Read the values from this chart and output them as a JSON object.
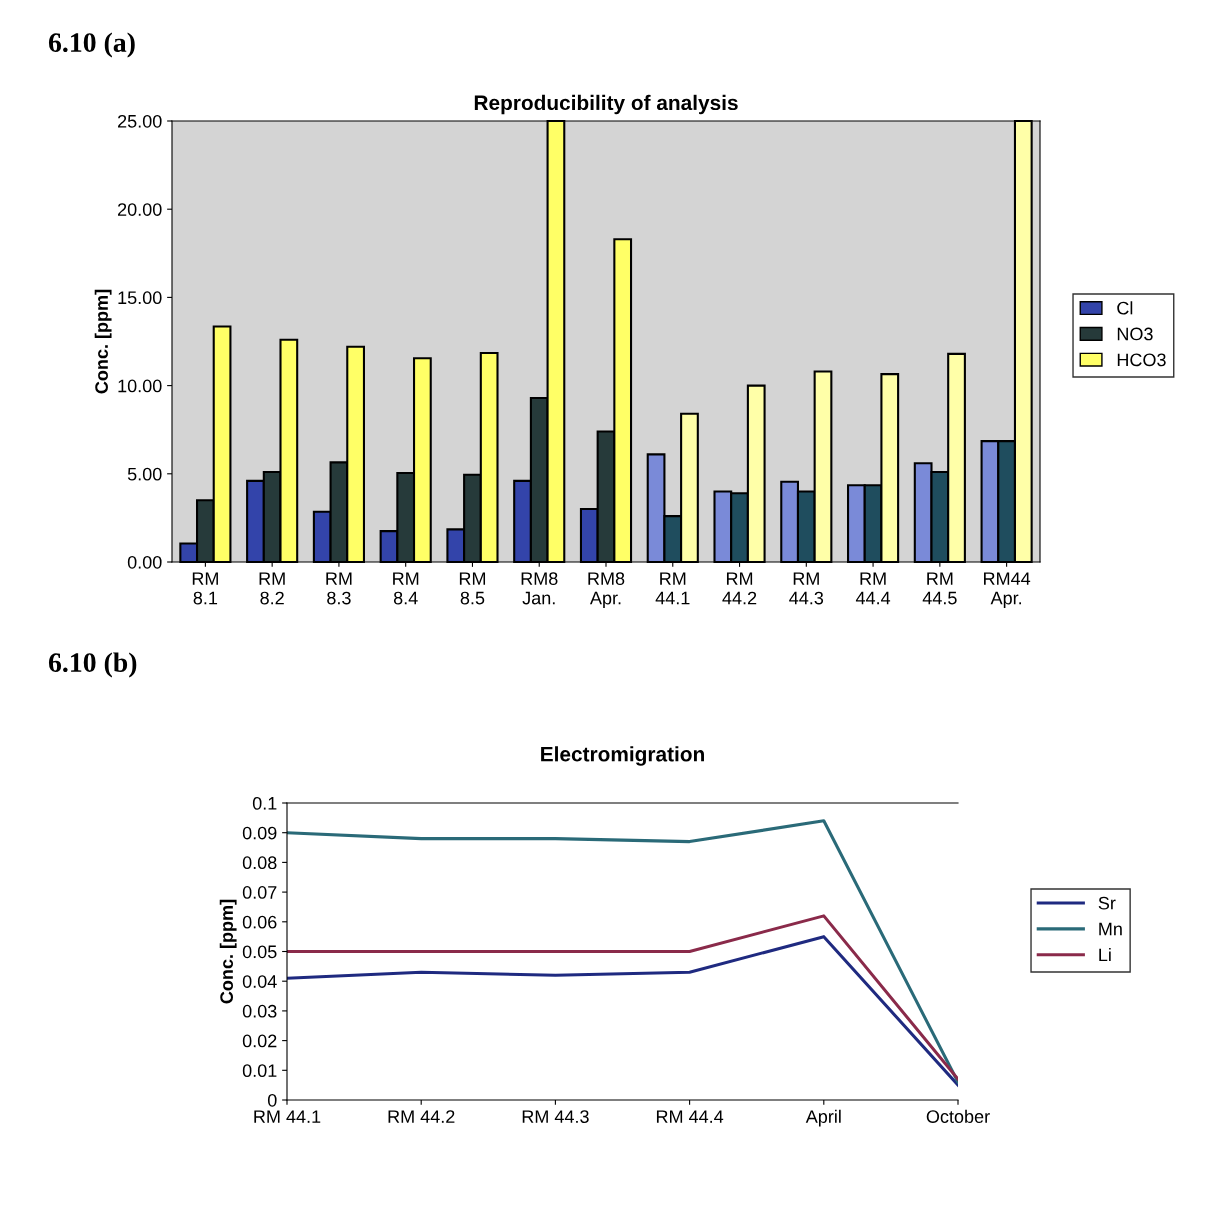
{
  "chart_data": [
    {
      "type": "bar",
      "title": "Reproducibility of analysis",
      "ylabel": "Conc. [ppm]",
      "annotations": [
        "6.10 (a)"
      ],
      "categories": [
        "RM\n8.1",
        "RM\n8.2",
        "RM\n8.3",
        "RM\n8.4",
        "RM\n8.5",
        "RM8\nJan.",
        "RM8\nApr.",
        "RM\n44.1",
        "RM\n44.2",
        "RM\n44.3",
        "RM\n44.4",
        "RM\n44.5",
        "RM44\nApr."
      ],
      "series": [
        {
          "name": "Cl",
          "color": "#3344aa",
          "colors": [
            "#3344aa",
            "#3344aa",
            "#3344aa",
            "#3344aa",
            "#3344aa",
            "#3344aa",
            "#3344aa",
            "#7a8ad8",
            "#7a8ad8",
            "#7a8ad8",
            "#7a8ad8",
            "#7a8ad8",
            "#7a8ad8"
          ],
          "values": [
            1.05,
            4.6,
            2.85,
            1.75,
            1.85,
            4.6,
            3.0,
            6.1,
            4.0,
            4.55,
            4.35,
            5.6,
            6.85
          ]
        },
        {
          "name": "NO3",
          "color": "#263a3a",
          "colors": [
            "#263a3a",
            "#263a3a",
            "#263a3a",
            "#263a3a",
            "#263a3a",
            "#263a3a",
            "#263a3a",
            "#1f4d5e",
            "#1f4d5e",
            "#1f4d5e",
            "#1f4d5e",
            "#1f4d5e",
            "#1f4d5e"
          ],
          "values": [
            3.5,
            5.1,
            5.65,
            5.05,
            4.95,
            9.3,
            7.4,
            2.6,
            3.9,
            4.0,
            4.35,
            5.1,
            6.85
          ]
        },
        {
          "name": "HCO3",
          "color": "#ffff66",
          "colors": [
            "#ffff66",
            "#ffff66",
            "#ffff66",
            "#ffff66",
            "#ffff66",
            "#ffff66",
            "#ffff66",
            "#ffffa8",
            "#ffffa8",
            "#ffffa8",
            "#ffffa8",
            "#ffffa8",
            "#ffffa8"
          ],
          "values": [
            13.35,
            12.6,
            12.2,
            11.55,
            11.85,
            25,
            18.3,
            8.4,
            10.0,
            10.8,
            10.65,
            11.8,
            25
          ]
        }
      ],
      "ylim": [
        0,
        25
      ],
      "yticks": [
        {
          "value": 0,
          "label": "0.00"
        },
        {
          "value": 5,
          "label": "5.00"
        },
        {
          "value": 10,
          "label": "10.00"
        },
        {
          "value": 15,
          "label": "15.00"
        },
        {
          "value": 20,
          "label": "20.00"
        },
        {
          "value": 25,
          "label": "25.00"
        }
      ],
      "grid": false,
      "legend": "right"
    },
    {
      "type": "line",
      "title": "Electromigration",
      "ylabel": "Conc. [ppm]",
      "annotations": [
        "6.10 (b)"
      ],
      "categories": [
        "RM 44.1",
        "RM 44.2",
        "RM 44.3",
        "RM 44.4",
        "April",
        "October"
      ],
      "series": [
        {
          "name": "Sr",
          "color": "#1f2a80",
          "values": [
            0.041,
            0.043,
            0.042,
            0.043,
            0.055,
            0.005
          ]
        },
        {
          "name": "Mn",
          "color": "#2a6a78",
          "values": [
            0.09,
            0.088,
            0.088,
            0.087,
            0.094,
            0.006
          ]
        },
        {
          "name": "Li",
          "color": "#8a2a4a",
          "values": [
            0.05,
            0.05,
            0.05,
            0.05,
            0.062,
            0.007
          ]
        }
      ],
      "ylim": [
        0,
        0.1
      ],
      "yticks": [
        0,
        0.01,
        0.02,
        0.03,
        0.04,
        0.05,
        0.06,
        0.07,
        0.08,
        0.09,
        0.1
      ],
      "grid": false,
      "legend": "right",
      "marker": "none",
      "line_style": "solid"
    }
  ]
}
